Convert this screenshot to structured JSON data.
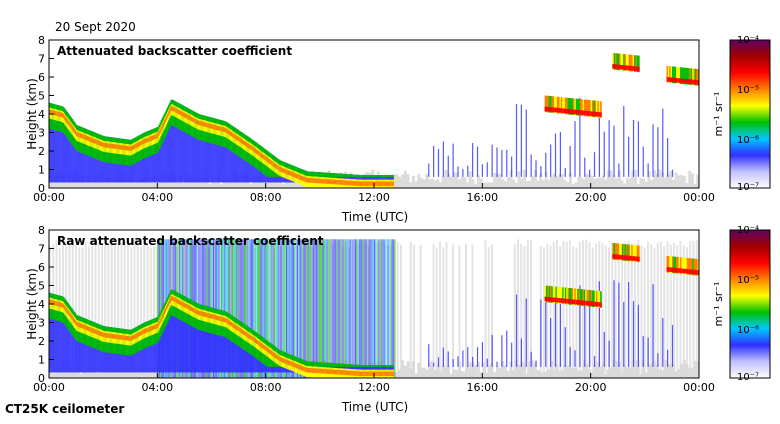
{
  "date_label": "20 Sept 2020",
  "instrument_label": "CT25K ceilometer",
  "chart_data": [
    {
      "type": "heatmap",
      "title": "Attenuated backscatter coefficient",
      "xlabel": "Time (UTC)",
      "ylabel": "Height (km)",
      "xticks": [
        "00:00",
        "04:00",
        "08:00",
        "12:00",
        "16:00",
        "20:00",
        "00:00"
      ],
      "xlim_hours": [
        0,
        24
      ],
      "yticks": [
        0,
        1,
        2,
        3,
        4,
        5,
        6,
        7,
        8
      ],
      "ylim": [
        0,
        8
      ],
      "colorbar": {
        "label": "m⁻¹ sr⁻¹",
        "scale": "log",
        "ticks": [
          "10⁻⁷",
          "10⁻⁶",
          "10⁻⁵",
          "10⁻⁴"
        ],
        "range": [
          1e-07,
          0.0001
        ],
        "colors": [
          "#ffffff",
          "#c0c0ff",
          "#3030ff",
          "#00c8ff",
          "#00c000",
          "#ffff00",
          "#ff8000",
          "#ff0000",
          "#a00000",
          "#600060"
        ]
      },
      "features": {
        "boundary_layer_top_km": [
          [
            0.0,
            4.6
          ],
          [
            0.5,
            4.4
          ],
          [
            1.0,
            3.4
          ],
          [
            2.0,
            2.8
          ],
          [
            3.0,
            2.6
          ],
          [
            3.5,
            3.0
          ],
          [
            4.0,
            3.3
          ],
          [
            4.5,
            4.8
          ],
          [
            5.5,
            4.0
          ],
          [
            6.5,
            3.6
          ],
          [
            7.5,
            2.6
          ],
          [
            8.5,
            1.5
          ],
          [
            9.5,
            0.9
          ],
          [
            10.5,
            0.8
          ],
          [
            11.5,
            0.7
          ],
          [
            12.7,
            0.7
          ]
        ],
        "elevated_layers_km": [
          {
            "start_h": 18.3,
            "end_h": 20.4,
            "height_km": 4.4
          },
          {
            "start_h": 20.8,
            "end_h": 21.8,
            "height_km": 6.7
          },
          {
            "start_h": 22.8,
            "end_h": 24.0,
            "height_km": 6.0
          }
        ]
      }
    },
    {
      "type": "heatmap",
      "title": "Raw attenuated backscatter coefficient",
      "xlabel": "Time (UTC)",
      "ylabel": "Height (km)",
      "xticks": [
        "00:00",
        "04:00",
        "08:00",
        "12:00",
        "16:00",
        "20:00",
        "00:00"
      ],
      "xlim_hours": [
        0,
        24
      ],
      "yticks": [
        0,
        1,
        2,
        3,
        4,
        5,
        6,
        7,
        8
      ],
      "ylim": [
        0,
        8
      ],
      "colorbar": {
        "label": "m⁻¹ sr⁻¹",
        "scale": "log",
        "ticks": [
          "10⁻⁷",
          "10⁻⁶",
          "10⁻⁵",
          "10⁻⁴"
        ],
        "range": [
          1e-07,
          0.0001
        ],
        "colors": [
          "#ffffff",
          "#c0c0ff",
          "#3030ff",
          "#00c8ff",
          "#00c000",
          "#ffff00",
          "#ff8000",
          "#ff0000",
          "#a00000",
          "#600060"
        ]
      },
      "features": {
        "noisy_blue_period_h": [
          4.0,
          12.8
        ],
        "noise_top_km": 7.5
      }
    }
  ]
}
